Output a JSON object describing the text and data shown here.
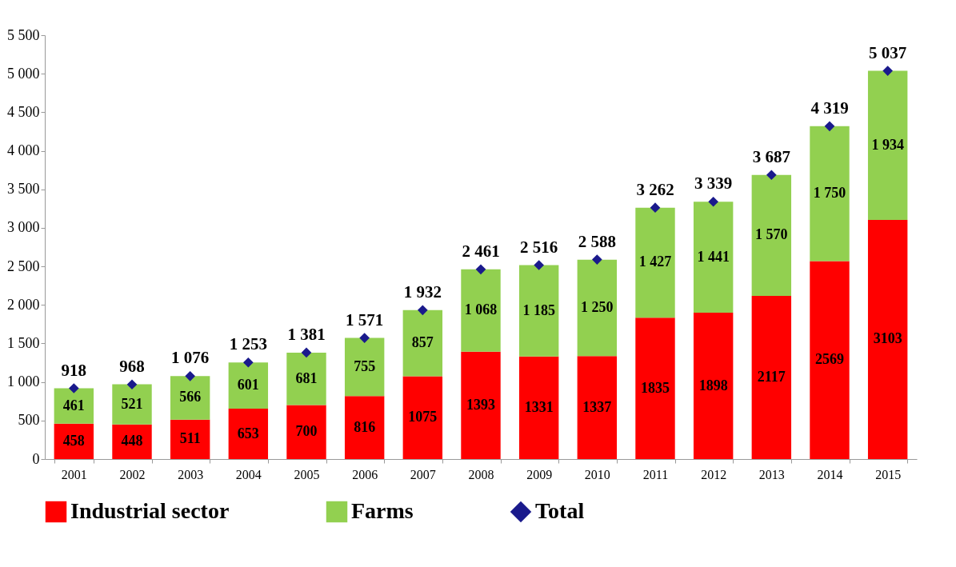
{
  "chart_data": {
    "type": "bar",
    "stacked": true,
    "categories": [
      "2001",
      "2002",
      "2003",
      "2004",
      "2005",
      "2006",
      "2007",
      "2008",
      "2009",
      "2010",
      "2011",
      "2012",
      "2013",
      "2014",
      "2015"
    ],
    "series": [
      {
        "name": "Industrial sector",
        "color": "#ff0000",
        "values": [
          458,
          448,
          511,
          653,
          700,
          816,
          1075,
          1393,
          1331,
          1337,
          1835,
          1898,
          2117,
          2569,
          3103
        ],
        "value_labels": [
          "458",
          "448",
          "511",
          "653",
          "700",
          "816",
          "1075",
          "1393",
          "1331",
          "1337",
          "1835",
          "1898",
          "2117",
          "2569",
          "3103"
        ]
      },
      {
        "name": "Farms",
        "color": "#92d050",
        "values": [
          461,
          521,
          566,
          601,
          681,
          755,
          857,
          1068,
          1185,
          1250,
          1427,
          1441,
          1570,
          1750,
          1934
        ],
        "value_labels": [
          "461",
          "521",
          "566",
          "601",
          "681",
          "755",
          "857",
          "1 068",
          "1 185",
          "1 250",
          "1 427",
          "1 441",
          "1 570",
          "1 750",
          "1 934"
        ]
      },
      {
        "name": "Total",
        "type": "scatter",
        "color": "#1a1a8c",
        "values": [
          918,
          968,
          1076,
          1253,
          1381,
          1571,
          1932,
          2461,
          2516,
          2588,
          3262,
          3339,
          3687,
          4319,
          5037
        ],
        "value_labels": [
          "918",
          "968",
          "1 076",
          "1 253",
          "1 381",
          "1 571",
          "1 932",
          "2 461",
          "2 516",
          "2 588",
          "3 262",
          "3 339",
          "3 687",
          "4 319",
          "5 037"
        ]
      }
    ],
    "marker": "diamond",
    "legend": "bottom",
    "ylim": [
      0,
      5500
    ],
    "yticks": [
      0,
      500,
      {
        "value": 1000,
        "label": "1 000"
      },
      {
        "value": 1500,
        "label": "1 500"
      },
      {
        "value": 2000,
        "label": "2 000"
      },
      {
        "value": 2500,
        "label": "2 500"
      },
      {
        "value": 3000,
        "label": "3 000"
      },
      {
        "value": 3500,
        "label": "3 500"
      },
      {
        "value": 4000,
        "label": "4 000"
      },
      {
        "value": 4500,
        "label": "4 500"
      },
      {
        "value": 5000,
        "label": "5 000"
      },
      {
        "value": 5500,
        "label": "5 500"
      }
    ]
  }
}
